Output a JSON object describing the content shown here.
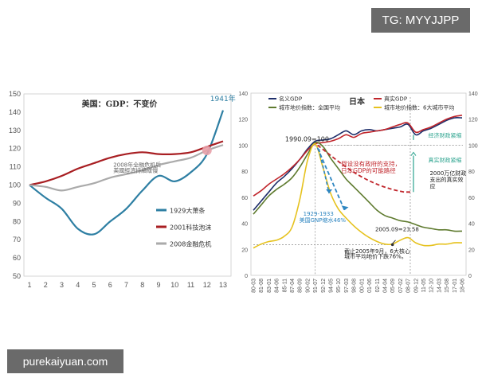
{
  "watermarks": {
    "top": "TG: MYYJJPP",
    "bottom": "purekaiyuan.com"
  },
  "colors": {
    "blue": "#2e7fa3",
    "darkred": "#a81e22",
    "gray": "#aaaaaa",
    "navy": "#1f2f6b",
    "red": "#c0252b",
    "green": "#5e7a2e",
    "yellow": "#e6c21e",
    "teal": "#2ba38e",
    "dashblue": "#2e86c1"
  },
  "chart_data": [
    {
      "type": "line",
      "title": "美国：GDP：不变价",
      "x": [
        1,
        2,
        3,
        4,
        5,
        6,
        7,
        8,
        9,
        10,
        11,
        12,
        13
      ],
      "ylim": [
        50,
        150
      ],
      "yticks": [
        50,
        60,
        70,
        80,
        90,
        100,
        110,
        120,
        130,
        140,
        150
      ],
      "grid": false,
      "legend_placement": "bottom-right",
      "series": [
        {
          "name": "1929大萧条",
          "values": [
            100,
            93,
            87,
            76,
            73,
            80,
            87,
            97,
            105,
            102,
            107,
            117,
            141
          ]
        },
        {
          "name": "2001科技泡沫",
          "values": [
            100,
            102,
            105,
            109,
            112,
            115,
            117,
            118,
            117,
            117,
            118,
            121,
            124
          ]
        },
        {
          "name": "2008金融危机",
          "values": [
            100,
            99,
            97,
            99,
            101,
            104,
            106,
            108,
            111,
            113,
            115,
            119,
            122
          ]
        }
      ],
      "annotations": [
        {
          "text": "1941年",
          "x": 12.2,
          "y": 146
        },
        {
          "text": "2008年全融危机后",
          "x": 6.2,
          "y": 110
        },
        {
          "text": "美國經濟持續緩慢",
          "x": 6.2,
          "y": 107
        }
      ]
    },
    {
      "type": "line",
      "title": "日本",
      "x_labels": [
        "80-03",
        "81-08",
        "83-01",
        "84-06",
        "85-11",
        "87-04",
        "88-09",
        "90-02",
        "91-07",
        "92-12",
        "94-05",
        "95-10",
        "97-03",
        "98-08",
        "00-01",
        "01-06",
        "02-11",
        "04-04",
        "05-09",
        "07-02",
        "08-07",
        "09-12",
        "11-05",
        "12-10",
        "14-03",
        "15-08",
        "17-01",
        "18-06"
      ],
      "ylim": [
        0,
        140
      ],
      "yticks": [
        0,
        20,
        40,
        60,
        80,
        100,
        120,
        140
      ],
      "grid": false,
      "legend_placement": "top-left",
      "series": [
        {
          "name": "名义GDP",
          "values": [
            50,
            57,
            64,
            71,
            76,
            82,
            89,
            97,
            103,
            104,
            105,
            108,
            111,
            108,
            111,
            112,
            111,
            112,
            113,
            114,
            116,
            108,
            111,
            113,
            116,
            119,
            121,
            121
          ]
        },
        {
          "name": "真实GDP",
          "values": [
            61,
            65,
            70,
            74,
            78,
            83,
            89,
            96,
            101,
            102,
            103,
            105,
            108,
            106,
            109,
            110,
            111,
            112,
            114,
            116,
            117,
            110,
            112,
            114,
            117,
            120,
            122,
            123
          ]
        },
        {
          "name": "城市地价指数：全国平均",
          "values": [
            47,
            54,
            61,
            66,
            70,
            75,
            83,
            93,
            102,
            99,
            90,
            82,
            74,
            68,
            62,
            56,
            50,
            46,
            44,
            42,
            41,
            39,
            37,
            36,
            35,
            35,
            34,
            34
          ]
        },
        {
          "name": "城市地价指数：6大城市平均",
          "values": [
            21,
            24,
            26,
            27,
            30,
            37,
            58,
            88,
            101,
            83,
            63,
            51,
            44,
            38,
            33,
            29,
            26,
            24,
            24,
            27,
            29,
            25,
            23,
            23,
            24,
            24,
            25,
            25
          ]
        }
      ],
      "annotations": [
        {
          "text": "1990.09=100",
          "x": "90-02",
          "y": 103
        },
        {
          "text": "假设没有政府的支持，",
          "x": "98-08",
          "y": 84
        },
        {
          "text": "日本GDP的可能路径",
          "x": "98-08",
          "y": 79
        },
        {
          "text": "1929-1933",
          "x": "91-07",
          "y": 46
        },
        {
          "text": "美国GNP缩水46%",
          "x": "91-07",
          "y": 41
        },
        {
          "text": "2005.09=23.58",
          "x": "04-04",
          "y": 34
        },
        {
          "text": "截止2005年9月，6大核心",
          "x": "98-08",
          "y": 17
        },
        {
          "text": "城市平均地价下跌76%。",
          "x": "98-08",
          "y": 13
        },
        {
          "text": "经济财政紧缩",
          "x": "11-05",
          "y": 106
        },
        {
          "text": "真实财政紧缩",
          "x": "11-05",
          "y": 87
        },
        {
          "text": "2000万亿财政",
          "x": "11-05",
          "y": 77
        },
        {
          "text": "支出的真实效",
          "x": "11-05",
          "y": 72
        },
        {
          "text": "应",
          "x": "11-05",
          "y": 67
        }
      ]
    }
  ]
}
